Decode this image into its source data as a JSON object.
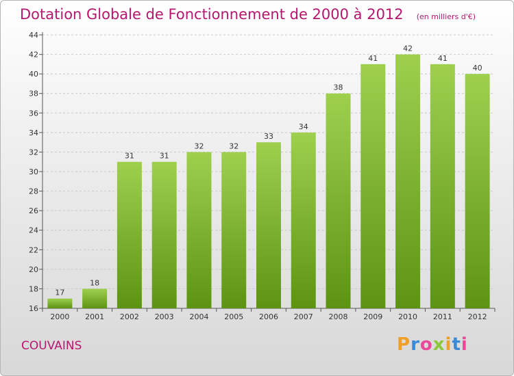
{
  "title": "Dotation Globale de Fonctionnement de 2000 à 2012",
  "subtitle": "(en milliers d'€)",
  "commune": "COUVAINS",
  "logo": {
    "letters": [
      "P",
      "r",
      "o",
      "x",
      "i",
      "t",
      "i"
    ],
    "colors": [
      "#f0a028",
      "#3a8ad8",
      "#e84a9a",
      "#8cc83c",
      "#f0a028",
      "#3a8ad8",
      "#e84a9a"
    ]
  },
  "colors": {
    "bar_top": "#9ed04e",
    "bar_bottom": "#5c9412",
    "title": "#b5166e",
    "grid": "#c8c8c8"
  },
  "chart_data": {
    "type": "bar",
    "categories": [
      "2000",
      "2001",
      "2002",
      "2003",
      "2004",
      "2005",
      "2006",
      "2007",
      "2008",
      "2009",
      "2010",
      "2011",
      "2012"
    ],
    "values": [
      17,
      18,
      31,
      31,
      32,
      32,
      33,
      34,
      38,
      41,
      42,
      41,
      40
    ],
    "data_labels": [
      "17",
      "18",
      "31",
      "31",
      "32",
      "32",
      "33",
      "34",
      "38",
      "41",
      "42",
      "41",
      "40"
    ],
    "yticks": [
      "16",
      "18",
      "20",
      "22",
      "24",
      "26",
      "28",
      "30",
      "32",
      "34",
      "36",
      "38",
      "40",
      "42",
      "44"
    ],
    "ylim": [
      16,
      44
    ],
    "grid": true,
    "legend": "none"
  }
}
